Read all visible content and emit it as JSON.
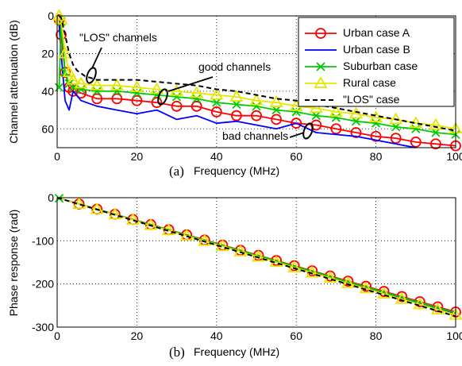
{
  "chart_data": [
    {
      "type": "line",
      "caption": "(a)",
      "xlabel": "Frequency (MHz)",
      "ylabel": "Channel attenuation (dB)",
      "xlim": [
        0,
        100
      ],
      "ylim": [
        0,
        70
      ],
      "y_inverted": true,
      "xticks": [
        0,
        20,
        40,
        60,
        80,
        100
      ],
      "yticks": [
        0,
        20,
        40,
        60
      ],
      "grid": true,
      "legend_position": "top-right",
      "series": [
        {
          "name": "Urban case A",
          "color": "#ff0000",
          "marker": "circle",
          "x": [
            0.5,
            1,
            2,
            3,
            4,
            6,
            10,
            15,
            20,
            25,
            30,
            35,
            40,
            45,
            50,
            55,
            60,
            65,
            70,
            75,
            80,
            85,
            90,
            95,
            100
          ],
          "y": [
            2,
            10,
            30,
            38,
            40,
            41,
            44,
            44,
            45,
            46,
            48,
            48,
            51,
            53,
            53,
            55,
            57,
            58,
            60,
            62,
            64,
            65,
            67,
            68,
            69
          ]
        },
        {
          "name": "Urban case B",
          "color": "#0000ff",
          "marker": "none",
          "x": [
            0.5,
            1,
            2,
            3,
            4,
            6,
            10,
            15,
            20,
            25,
            30,
            35,
            40,
            45,
            50,
            55,
            60,
            65,
            70,
            75,
            80,
            85,
            90
          ],
          "y": [
            5,
            20,
            45,
            50,
            40,
            45,
            48,
            50,
            52,
            50,
            55,
            53,
            57,
            56,
            58,
            60,
            57,
            62,
            63,
            64,
            66,
            68,
            70
          ]
        },
        {
          "name": "Suburban case",
          "color": "#00cc00",
          "marker": "x",
          "x": [
            0.5,
            1,
            2,
            3,
            4,
            6,
            10,
            15,
            20,
            25,
            30,
            35,
            40,
            45,
            50,
            55,
            60,
            65,
            70,
            75,
            80,
            85,
            90,
            95,
            100
          ],
          "y": [
            38,
            3,
            30,
            36,
            38,
            39,
            40,
            40,
            41,
            42,
            43,
            44,
            46,
            47,
            48,
            50,
            51,
            53,
            54,
            56,
            57,
            59,
            60,
            62,
            63
          ]
        },
        {
          "name": "Rural case",
          "color": "#e6e600",
          "marker": "triangle",
          "x": [
            0.5,
            1,
            2,
            3,
            4,
            6,
            10,
            15,
            20,
            25,
            30,
            35,
            40,
            45,
            50,
            55,
            60,
            65,
            70,
            75,
            80,
            85,
            90,
            95,
            100
          ],
          "y": [
            0,
            2,
            20,
            30,
            34,
            36,
            37,
            37,
            38,
            39,
            40,
            41,
            42,
            43,
            45,
            46,
            48,
            49,
            51,
            52,
            54,
            55,
            57,
            58,
            60
          ]
        },
        {
          "name": "\"LOS\" case",
          "color": "#000000",
          "marker": "none",
          "dashed": true,
          "x": [
            0.5,
            1,
            2,
            3,
            4,
            5,
            7,
            10,
            15,
            20,
            25,
            30,
            35,
            40,
            45,
            50,
            55,
            60,
            65,
            70,
            75,
            80,
            85,
            90,
            95,
            100
          ],
          "y": [
            0,
            1,
            10,
            20,
            26,
            29,
            32,
            34,
            34,
            34,
            35,
            36,
            37,
            39,
            40,
            42,
            44,
            45,
            47,
            49,
            51,
            53,
            55,
            57,
            59,
            61
          ]
        }
      ],
      "annotations": [
        {
          "text": "\"LOS\" channels"
        },
        {
          "text": "good channels"
        },
        {
          "text": "bad channels"
        }
      ]
    },
    {
      "type": "line",
      "caption": "(b)",
      "xlabel": "Frequency (MHz)",
      "ylabel": "Phase response (rad)",
      "xlim": [
        0,
        100
      ],
      "ylim": [
        -300,
        0
      ],
      "xticks": [
        0,
        20,
        40,
        60,
        80,
        100
      ],
      "yticks": [
        0,
        -100,
        -200,
        -300
      ],
      "grid": true,
      "series": [
        {
          "name": "Urban case A",
          "color": "#ff0000",
          "marker": "circle",
          "x": [
            0,
            100
          ],
          "y": [
            0,
            -265
          ],
          "marker_x": [
            5.5,
            10,
            14.5,
            19,
            23.5,
            28,
            32.5,
            37,
            41.5,
            46,
            50.5,
            55,
            59.5,
            64,
            68.5,
            73,
            77.5,
            82,
            86.5,
            91,
            95.5,
            100
          ]
        },
        {
          "name": "Urban case B",
          "color": "#0000ff",
          "marker": "none",
          "x": [
            0,
            100
          ],
          "y": [
            0,
            -268
          ]
        },
        {
          "name": "Suburban case",
          "color": "#00cc00",
          "marker": "x",
          "x": [
            0,
            100
          ],
          "y": [
            0,
            -267
          ],
          "marker_x": [
            0.5
          ]
        },
        {
          "name": "Rural case",
          "color": "#e6e600",
          "marker": "triangle",
          "x": [
            0,
            100
          ],
          "y": [
            0,
            -272
          ],
          "marker_x": [
            5.5,
            10,
            14.5,
            19,
            23.5,
            28,
            32.5,
            37,
            41.5,
            46,
            50.5,
            55,
            59.5,
            64,
            68.5,
            73,
            77.5,
            82,
            86.5,
            91,
            95.5,
            100
          ]
        },
        {
          "name": "\"LOS\" case",
          "color": "#000000",
          "marker": "none",
          "dashed": true,
          "x": [
            0,
            100
          ],
          "y": [
            0,
            -275
          ]
        }
      ]
    }
  ]
}
